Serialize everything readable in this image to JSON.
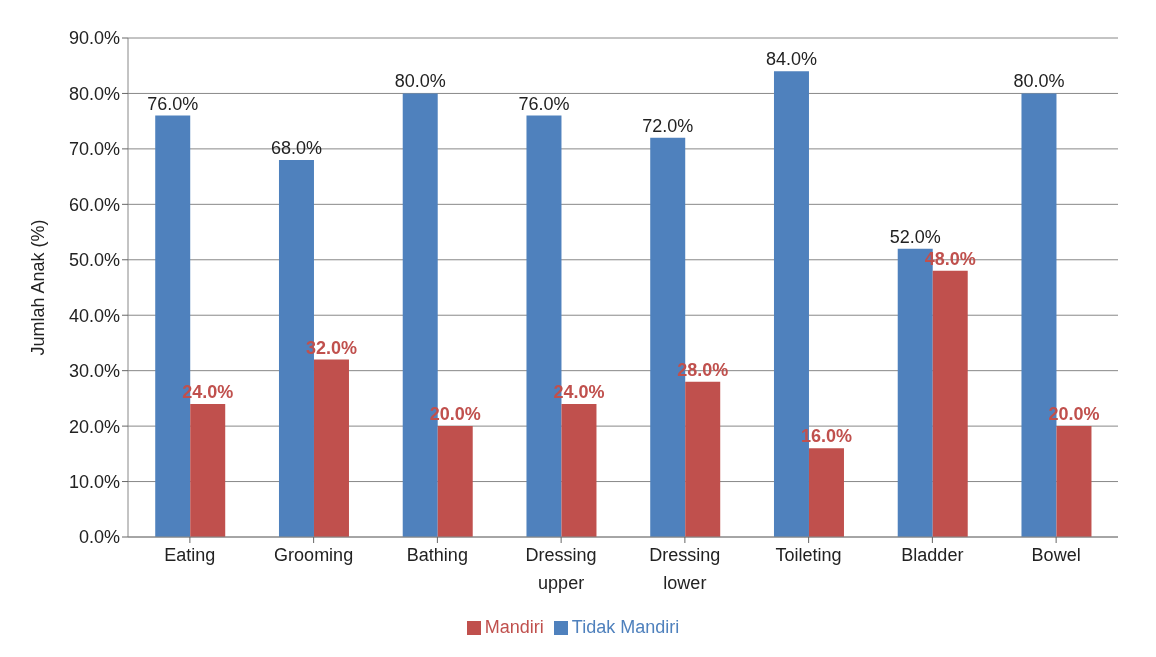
{
  "chart_data": {
    "type": "bar",
    "ylabel": "Jumlah Anak (%)",
    "categories": [
      "Eating",
      "Grooming",
      "Bathing",
      "Dressing upper",
      "Dressing lower",
      "Toileting",
      "Bladder",
      "Bowel"
    ],
    "series": [
      {
        "name": "Tidak Mandiri",
        "color": "#4f81bd",
        "values": [
          76,
          68,
          80,
          76,
          72,
          84,
          52,
          80
        ],
        "value_labels": [
          "76.0%",
          "68.0%",
          "80.0%",
          "76.0%",
          "72.0%",
          "84.0%",
          "52.0%",
          "80.0%"
        ]
      },
      {
        "name": "Mandiri",
        "color": "#c0504d",
        "values": [
          24,
          32,
          20,
          24,
          28,
          16,
          48,
          20
        ],
        "value_labels": [
          "24.0%",
          "32.0%",
          "20.0%",
          "24.0%",
          "28.0%",
          "16.0%",
          "48.0%",
          "20.0%"
        ]
      }
    ],
    "ylim": [
      0,
      90
    ],
    "yticks": [
      {
        "value": 0,
        "label": "0.0%"
      },
      {
        "value": 10,
        "label": "10.0%"
      },
      {
        "value": 20,
        "label": "20.0%"
      },
      {
        "value": 30,
        "label": "30.0%"
      },
      {
        "value": 40,
        "label": "40.0%"
      },
      {
        "value": 50,
        "label": "50.0%"
      },
      {
        "value": 60,
        "label": "60.0%"
      },
      {
        "value": 70,
        "label": "70.0%"
      },
      {
        "value": 80,
        "label": "80.0%"
      },
      {
        "value": 90,
        "label": "90.0%"
      }
    ],
    "grid": "y",
    "legend": "bottom"
  }
}
